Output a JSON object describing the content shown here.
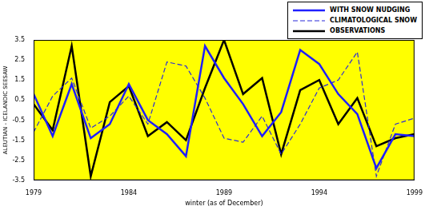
{
  "chart_data": {
    "type": "line",
    "x_label": "winter (as of December)",
    "y_label": "ALEUTIAN - ICELANDIC SEESAW",
    "x": [
      1979,
      1980,
      1981,
      1982,
      1983,
      1984,
      1985,
      1986,
      1987,
      1988,
      1989,
      1990,
      1991,
      1992,
      1993,
      1994,
      1995,
      1996,
      1997,
      1998,
      1999
    ],
    "series": [
      {
        "name": "WITH SNOW NUDGING",
        "color": "#1f1fff",
        "line_style": "solid",
        "values": [
          0.8,
          -1.3,
          1.3,
          -1.4,
          -0.7,
          1.3,
          -0.5,
          -1.2,
          -2.3,
          3.2,
          1.6,
          0.3,
          -1.3,
          -0.1,
          3.0,
          2.3,
          0.8,
          -0.2,
          -2.9,
          -1.2,
          -1.3
        ]
      },
      {
        "name": "CLIMATOLOGICAL SNOW",
        "color": "#2b2bd9",
        "line_style": "dashed",
        "values": [
          -1.1,
          0.7,
          1.6,
          -0.9,
          -0.3,
          0.7,
          -0.7,
          2.4,
          2.2,
          0.6,
          -1.4,
          -1.6,
          -0.3,
          -2.2,
          -0.7,
          1.1,
          1.5,
          2.9,
          -3.3,
          -0.7,
          -0.4
        ]
      },
      {
        "name": "OBSERVATIONS",
        "color": "#000000",
        "line_style": "solid",
        "values": [
          0.3,
          -1.0,
          3.2,
          -3.3,
          0.4,
          1.2,
          -1.3,
          -0.6,
          -1.5,
          1.1,
          3.5,
          0.8,
          1.6,
          -2.2,
          1.0,
          1.5,
          -0.7,
          0.6,
          -1.8,
          -1.4,
          -1.2
        ]
      }
    ],
    "xlim": [
      1979,
      1999
    ],
    "xticks": [
      1979,
      1984,
      1989,
      1994,
      1999
    ],
    "ylim": [
      -3.5,
      3.5
    ],
    "yticks": [
      -3.5,
      -2.5,
      -1.5,
      -0.5,
      0.5,
      1.5,
      2.5,
      3.5
    ],
    "grid": false,
    "legend": "top-right"
  }
}
